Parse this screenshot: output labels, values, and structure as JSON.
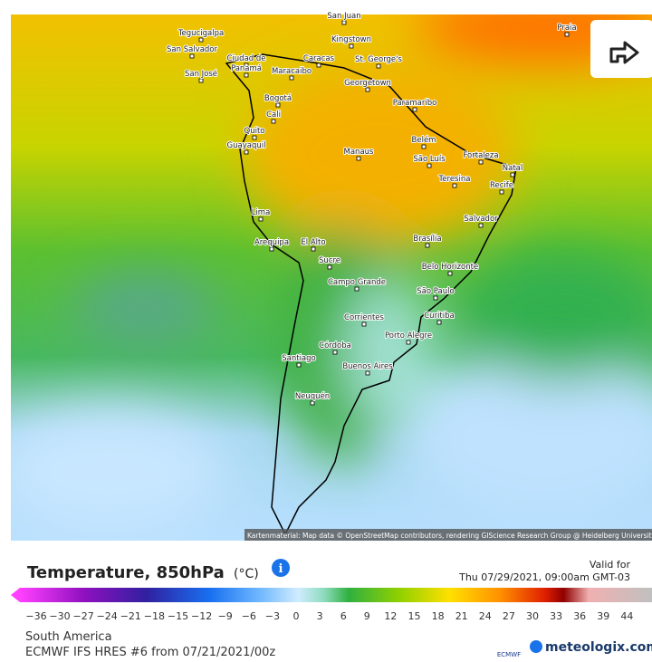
{
  "header": {
    "share": "share"
  },
  "map": {
    "cities": [
      "San Juan",
      "Tegucigalpa",
      "San Salvador",
      "Ciudad de",
      "Panamá",
      "San José",
      "Caracas",
      "Maracaibo",
      "Kingstown",
      "St. George's",
      "Praia",
      "Georgetown",
      "Paramaribo",
      "Bogotá",
      "Cali",
      "Quito",
      "Guayaquil",
      "Manaus",
      "Belém",
      "São Luís",
      "Fortaleza",
      "Natal",
      "Teresina",
      "Recife",
      "Salvador",
      "Lima",
      "Arequipa",
      "El Alto",
      "Brasília",
      "Sucre",
      "Belo Horizonte",
      "Campo Grande",
      "São Paulo",
      "Curitiba",
      "Corrientes",
      "Porto Alegre",
      "Córdoba",
      "Santiago",
      "Buenos Aires",
      "Neuquén"
    ],
    "attribution": "Kartenmaterial: Map data © OpenStreetMap contributors, rendering GIScience Research Group @ Heidelberg University"
  },
  "legend": {
    "title": "Temperature, 850hPa",
    "unit": "(°C)",
    "valid_label": "Valid for",
    "valid_time": "Thu 07/29/2021, 09:00am GMT-03",
    "ticks": [
      "−36",
      "−30",
      "−27",
      "−24",
      "−21",
      "−18",
      "−15",
      "−12",
      "−9",
      "−6",
      "−3",
      "0",
      "3",
      "6",
      "9",
      "12",
      "15",
      "18",
      "21",
      "24",
      "27",
      "30",
      "33",
      "36",
      "39",
      "44"
    ]
  },
  "footer": {
    "region": "South America",
    "model": "ECMWF IFS HRES #6 from 07/21/2021/00z",
    "ecmwf": "ECMWF",
    "brand": "meteologix.com"
  }
}
